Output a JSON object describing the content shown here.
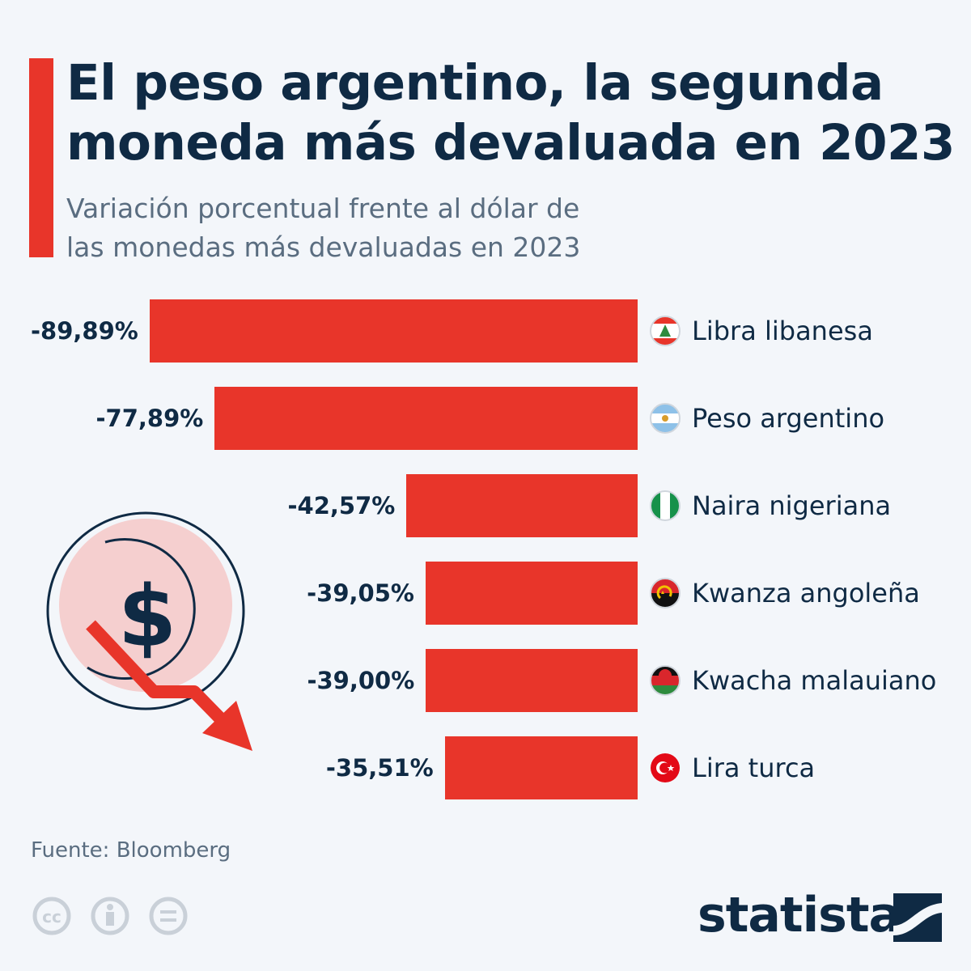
{
  "title": "El peso argentino, la segunda moneda más devaluada en 2023",
  "subtitle_line1": "Variación porcentual frente al dólar de",
  "subtitle_line2": "las monedas más devaluadas en 2023",
  "source": "Fuente: Bloomberg",
  "logo": "statista",
  "colors": {
    "accent": "#e8352a",
    "text": "#0f2a44",
    "muted": "#5a6d80",
    "background": "#f3f6fa"
  },
  "chart_data": {
    "type": "bar",
    "orientation": "horizontal",
    "title": "El peso argentino, la segunda moneda más devaluada en 2023",
    "xlabel": "",
    "ylabel": "",
    "xlim": [
      -100,
      0
    ],
    "categories": [
      "Libra libanesa",
      "Peso argentino",
      "Naira nigeriana",
      "Kwanza angoleña",
      "Kwacha malauiano",
      "Lira turca"
    ],
    "values": [
      -89.89,
      -77.89,
      -42.57,
      -39.05,
      -39.0,
      -35.51
    ],
    "value_labels": [
      "-89,89%",
      "-77,89%",
      "-42,57%",
      "-39,05%",
      "-39,00%",
      "-35,51%"
    ],
    "flags": [
      "lebanon-flag-icon",
      "argentina-flag-icon",
      "nigeria-flag-icon",
      "angola-flag-icon",
      "malawi-flag-icon",
      "turkey-flag-icon"
    ],
    "bar_color": "#e8352a"
  }
}
